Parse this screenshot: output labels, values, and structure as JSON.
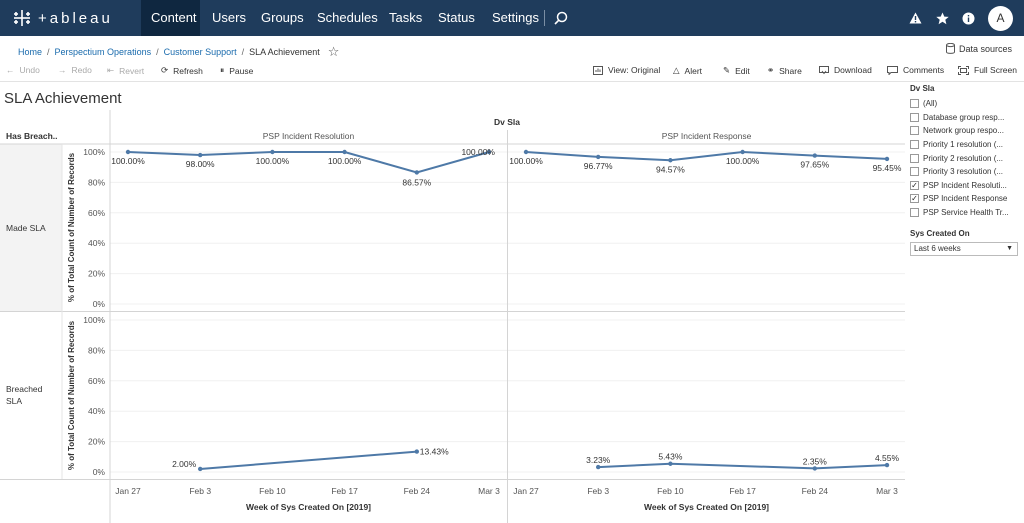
{
  "nav": {
    "brand": "+ableau",
    "items": [
      "Content",
      "Users",
      "Groups",
      "Schedules",
      "Tasks",
      "Status",
      "Settings"
    ],
    "avatar": "A"
  },
  "breadcrumb": [
    "Home",
    "Perspectium Operations",
    "Customer Support",
    "SLA Achievement"
  ],
  "data_sources": "Data sources",
  "toolbar": {
    "undo": "Undo",
    "redo": "Redo",
    "revert": "Revert",
    "refresh": "Refresh",
    "pause": "Pause",
    "view": "View: Original",
    "alert": "Alert",
    "edit": "Edit",
    "share": "Share",
    "download": "Download",
    "comments": "Comments",
    "fullscreen": "Full Screen"
  },
  "page_title": "SLA Achievement",
  "filters": {
    "dv_sla": {
      "title": "Dv Sla",
      "items": [
        {
          "label": "(All)",
          "checked": false
        },
        {
          "label": "Database group resp...",
          "checked": false
        },
        {
          "label": "Network group respo...",
          "checked": false
        },
        {
          "label": "Priority 1 resolution (...",
          "checked": false
        },
        {
          "label": "Priority 2 resolution (...",
          "checked": false
        },
        {
          "label": "Priority 3 resolution (...",
          "checked": false
        },
        {
          "label": "PSP Incident Resoluti...",
          "checked": true
        },
        {
          "label": "PSP Incident Response",
          "checked": true
        },
        {
          "label": "PSP Service Health Tr...",
          "checked": false
        }
      ]
    },
    "sys_created_on": {
      "title": "Sys Created On",
      "value": "Last 6 weeks"
    }
  },
  "chart_data": {
    "type": "line",
    "column_header": "Dv Sla",
    "row_header": "Has Breach..",
    "columns": [
      "PSP Incident Resolution",
      "PSP Incident Response"
    ],
    "rows": [
      "Made SLA",
      "Breached SLA"
    ],
    "ylabel": "% of Total Count of Number of Records",
    "xlabel": "Week of Sys Created On [2019]",
    "y_ticks": [
      "100%",
      "80%",
      "60%",
      "40%",
      "20%",
      "0%"
    ],
    "x_ticks": [
      "Jan 27",
      "Feb 3",
      "Feb 10",
      "Feb 17",
      "Feb 24",
      "Mar 3"
    ],
    "ylim": [
      0,
      100
    ],
    "panels": [
      {
        "row": "Made SLA",
        "column": "PSP Incident Resolution",
        "x": [
          0,
          1,
          2,
          3,
          4,
          5
        ],
        "y": [
          100,
          98,
          100,
          100,
          86.57,
          100
        ],
        "labels": [
          "100.00%",
          "98.00%",
          "100.00%",
          "100.00%",
          "86.57%",
          "100.00%"
        ]
      },
      {
        "row": "Made SLA",
        "column": "PSP Incident Response",
        "x": [
          0,
          1,
          2,
          3,
          4,
          5
        ],
        "y": [
          100,
          96.77,
          94.57,
          100,
          97.65,
          95.45
        ],
        "labels": [
          "100.00%",
          "96.77%",
          "94.57%",
          "100.00%",
          "97.65%",
          "95.45%"
        ]
      },
      {
        "row": "Breached SLA",
        "column": "PSP Incident Resolution",
        "x": [
          1,
          4
        ],
        "y": [
          2.0,
          13.43
        ],
        "labels": [
          "2.00%",
          "13.43%"
        ]
      },
      {
        "row": "Breached SLA",
        "column": "PSP Incident Response",
        "x": [
          1,
          2,
          4,
          5
        ],
        "y": [
          3.23,
          5.43,
          2.35,
          4.55
        ],
        "labels": [
          "3.23%",
          "5.43%",
          "2.35%",
          "4.55%"
        ]
      }
    ],
    "line_color": "#4e79a7",
    "grid": true
  }
}
